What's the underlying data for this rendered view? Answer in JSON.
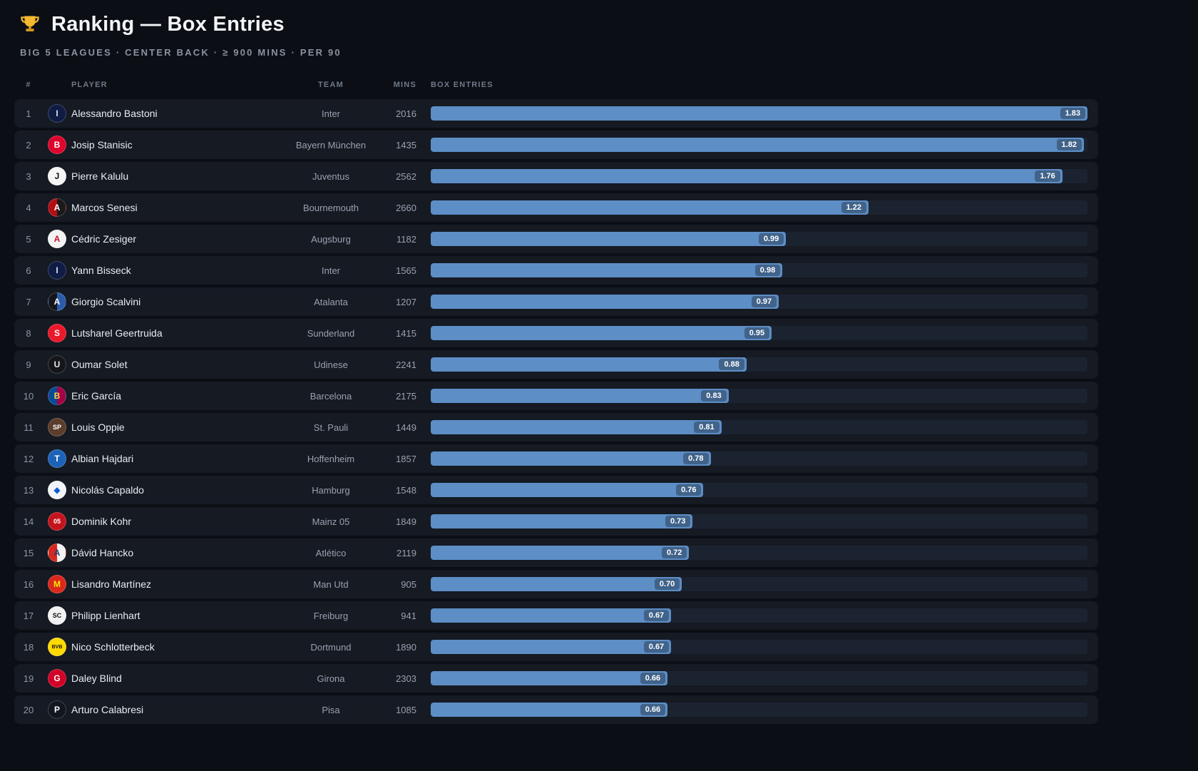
{
  "theme": {
    "page_bg": "#0b0e14",
    "row_bg": "#151a23",
    "track_bg": "#1c2330",
    "bar_color": "#5d8ec6",
    "trophy_gold": "#f5b82e"
  },
  "header": {
    "icon": "trophy-icon",
    "title": "Ranking — Box Entries",
    "subtitle": "BIG 5 LEAGUES · CENTER BACK · ≥ 900 MINS · PER 90"
  },
  "table": {
    "columns": {
      "rank": "#",
      "player": "PLAYER",
      "team": "TEAM",
      "mins": "MINS",
      "value": "BOX ENTRIES"
    }
  },
  "chart_data": {
    "type": "bar",
    "orientation": "horizontal",
    "title": "Ranking — Box Entries",
    "metric": "Box Entries per 90",
    "xlim": [
      0,
      1.83
    ],
    "max_value": 1.83,
    "rows": [
      {
        "rank": "1",
        "player": "Alessandro Bastoni",
        "team": "Inter",
        "mins": "2016",
        "value": 1.83,
        "label": "1.83",
        "badge": {
          "bg": "#101c44",
          "bg2": null,
          "fg": "#d7e2f5",
          "label": "I"
        }
      },
      {
        "rank": "2",
        "player": "Josip Stanisic",
        "team": "Bayern München",
        "mins": "1435",
        "value": 1.82,
        "label": "1.82",
        "badge": {
          "bg": "#dc052d",
          "bg2": null,
          "fg": "#ffffff",
          "label": "B"
        }
      },
      {
        "rank": "3",
        "player": "Pierre Kalulu",
        "team": "Juventus",
        "mins": "2562",
        "value": 1.76,
        "label": "1.76",
        "badge": {
          "bg": "#f5f5f5",
          "bg2": null,
          "fg": "#111111",
          "label": "J"
        }
      },
      {
        "rank": "4",
        "player": "Marcos Senesi",
        "team": "Bournemouth",
        "mins": "2660",
        "value": 1.22,
        "label": "1.22",
        "badge": {
          "bg": "#b50e12",
          "bg2": "#1a1a1a",
          "fg": "#ffffff",
          "label": "A"
        }
      },
      {
        "rank": "5",
        "player": "Cédric Zesiger",
        "team": "Augsburg",
        "mins": "1182",
        "value": 0.99,
        "label": "0.99",
        "badge": {
          "bg": "#f2f2f2",
          "bg2": null,
          "fg": "#c8102e",
          "label": "A"
        }
      },
      {
        "rank": "6",
        "player": "Yann Bisseck",
        "team": "Inter",
        "mins": "1565",
        "value": 0.98,
        "label": "0.98",
        "badge": {
          "bg": "#101c44",
          "bg2": null,
          "fg": "#d7e2f5",
          "label": "I"
        }
      },
      {
        "rank": "7",
        "player": "Giorgio Scalvini",
        "team": "Atalanta",
        "mins": "1207",
        "value": 0.97,
        "label": "0.97",
        "badge": {
          "bg": "#14151a",
          "bg2": "#2a5caa",
          "fg": "#ffffff",
          "label": "A"
        }
      },
      {
        "rank": "8",
        "player": "Lutsharel Geertruida",
        "team": "Sunderland",
        "mins": "1415",
        "value": 0.95,
        "label": "0.95",
        "badge": {
          "bg": "#eb172b",
          "bg2": null,
          "fg": "#ffffff",
          "label": "S"
        }
      },
      {
        "rank": "9",
        "player": "Oumar Solet",
        "team": "Udinese",
        "mins": "2241",
        "value": 0.88,
        "label": "0.88",
        "badge": {
          "bg": "#15161a",
          "bg2": null,
          "fg": "#e8e8e8",
          "label": "U"
        }
      },
      {
        "rank": "10",
        "player": "Eric García",
        "team": "Barcelona",
        "mins": "2175",
        "value": 0.83,
        "label": "0.83",
        "badge": {
          "bg": "#004d98",
          "bg2": "#a50044",
          "fg": "#ffd24a",
          "label": "B"
        }
      },
      {
        "rank": "11",
        "player": "Louis Oppie",
        "team": "St. Pauli",
        "mins": "1449",
        "value": 0.81,
        "label": "0.81",
        "badge": {
          "bg": "#5a3e2b",
          "bg2": null,
          "fg": "#ffffff",
          "label": "SP"
        }
      },
      {
        "rank": "12",
        "player": "Albian Hajdari",
        "team": "Hoffenheim",
        "mins": "1857",
        "value": 0.78,
        "label": "0.78",
        "badge": {
          "bg": "#1c63b7",
          "bg2": null,
          "fg": "#ffffff",
          "label": "T"
        }
      },
      {
        "rank": "13",
        "player": "Nicolás Capaldo",
        "team": "Hamburg",
        "mins": "1548",
        "value": 0.76,
        "label": "0.76",
        "badge": {
          "bg": "#f2f4f7",
          "bg2": null,
          "fg": "#0b5bd3",
          "label": "◆"
        }
      },
      {
        "rank": "14",
        "player": "Dominik Kohr",
        "team": "Mainz 05",
        "mins": "1849",
        "value": 0.73,
        "label": "0.73",
        "badge": {
          "bg": "#c3141e",
          "bg2": null,
          "fg": "#ffffff",
          "label": "05"
        }
      },
      {
        "rank": "15",
        "player": "Dávid Hancko",
        "team": "Atlético",
        "mins": "2119",
        "value": 0.72,
        "label": "0.72",
        "badge": {
          "bg": "#d6281e",
          "bg2": "#f2f2f2",
          "fg": "#1f3a7a",
          "label": "A"
        }
      },
      {
        "rank": "16",
        "player": "Lisandro Martínez",
        "team": "Man Utd",
        "mins": "905",
        "value": 0.7,
        "label": "0.70",
        "badge": {
          "bg": "#da291c",
          "bg2": null,
          "fg": "#ffe500",
          "label": "M"
        }
      },
      {
        "rank": "17",
        "player": "Philipp Lienhart",
        "team": "Freiburg",
        "mins": "941",
        "value": 0.67,
        "label": "0.67",
        "badge": {
          "bg": "#f2f2f2",
          "bg2": null,
          "fg": "#111111",
          "label": "SC"
        }
      },
      {
        "rank": "18",
        "player": "Nico Schlotterbeck",
        "team": "Dortmund",
        "mins": "1890",
        "value": 0.67,
        "label": "0.67",
        "badge": {
          "bg": "#ffd900",
          "bg2": null,
          "fg": "#111111",
          "label": "BVB"
        }
      },
      {
        "rank": "19",
        "player": "Daley Blind",
        "team": "Girona",
        "mins": "2303",
        "value": 0.66,
        "label": "0.66",
        "badge": {
          "bg": "#d00027",
          "bg2": null,
          "fg": "#ffffff",
          "label": "G"
        }
      },
      {
        "rank": "20",
        "player": "Arturo Calabresi",
        "team": "Pisa",
        "mins": "1085",
        "value": 0.66,
        "label": "0.66",
        "badge": {
          "bg": "#12161f",
          "bg2": null,
          "fg": "#ffffff",
          "label": "P"
        }
      }
    ]
  }
}
